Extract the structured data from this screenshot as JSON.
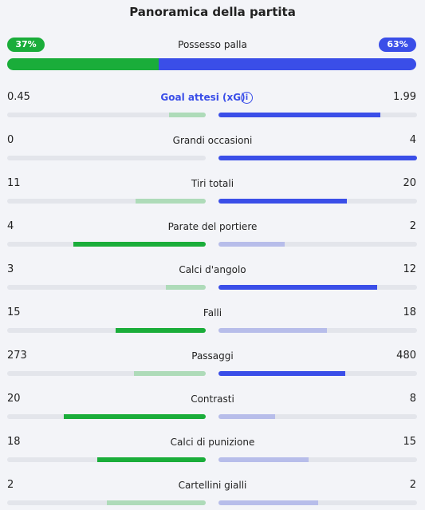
{
  "title": "Panoramica della partita",
  "possession": {
    "label": "Possesso palla",
    "home": {
      "value": 37,
      "label": "37%"
    },
    "away": {
      "value": 63,
      "label": "63%"
    },
    "colors": [
      "#1aad3a",
      "#3a4ee8"
    ]
  },
  "stats": [
    {
      "label": "Goal attesi (xG)",
      "home": 0.45,
      "away": 1.99,
      "colors": [
        "#aedbb9",
        "#3a4ee8"
      ]
    },
    {
      "label": "Grandi occasioni",
      "home": 0,
      "away": 4,
      "colors": [
        "#aedbb9",
        "#3a4ee8"
      ]
    },
    {
      "label": "Tiri totali",
      "home": 11,
      "away": 20,
      "colors": [
        "#aedbb9",
        "#3a4ee8"
      ]
    },
    {
      "label": "Parate del portiere",
      "home": 4,
      "away": 2,
      "colors": [
        "#1aad3a",
        "#b7bdea"
      ]
    },
    {
      "label": "Calci d'angolo",
      "home": 3,
      "away": 12,
      "colors": [
        "#aedbb9",
        "#3a4ee8"
      ]
    },
    {
      "label": "Falli",
      "home": 15,
      "away": 18,
      "colors": [
        "#1aad3a",
        "#b7bdea"
      ]
    },
    {
      "label": "Passaggi",
      "home": 273,
      "away": 480,
      "colors": [
        "#aedbb9",
        "#3a4ee8"
      ]
    },
    {
      "label": "Contrasti",
      "home": 20,
      "away": 8,
      "colors": [
        "#1aad3a",
        "#b7bdea"
      ]
    },
    {
      "label": "Calci di punizione",
      "home": 18,
      "away": 15,
      "colors": [
        "#1aad3a",
        "#b7bdea"
      ]
    },
    {
      "label": "Cartellini gialli",
      "home": 2,
      "away": 2,
      "colors": [
        "#aedbb9",
        "#b7bdea"
      ]
    }
  ]
}
